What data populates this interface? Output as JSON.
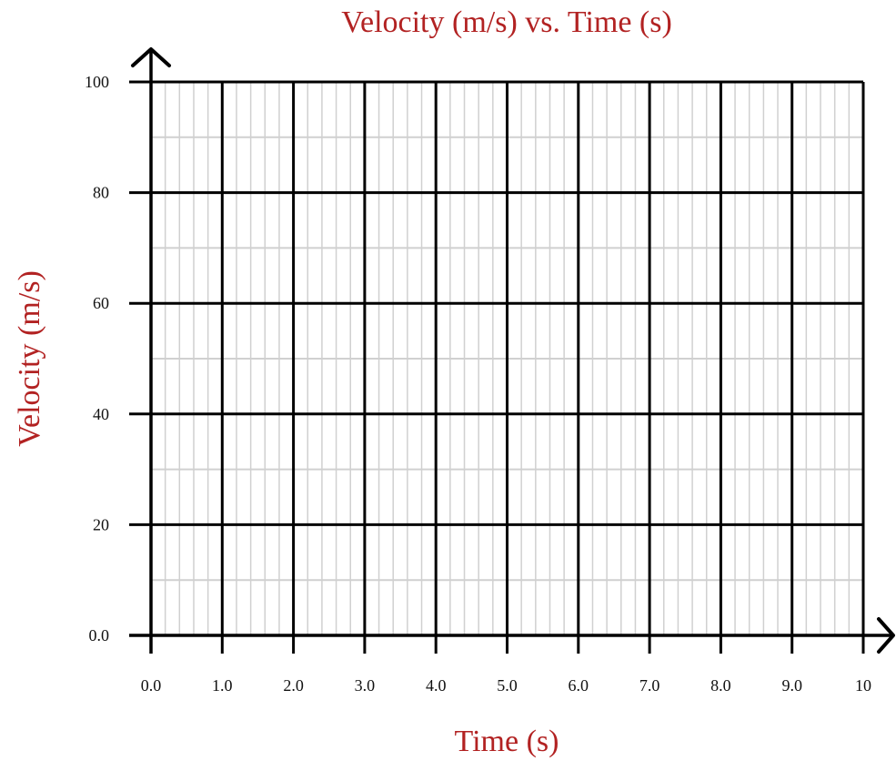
{
  "chart_data": {
    "type": "line",
    "title": "Velocity (m/s) vs. Time (s)",
    "xlabel": "Time (s)",
    "ylabel": "Velocity (m/s)",
    "xlim": [
      0,
      10
    ],
    "ylim": [
      0,
      100
    ],
    "x_tick_values": [
      0,
      1,
      2,
      3,
      4,
      5,
      6,
      7,
      8,
      9,
      10
    ],
    "x_tick_labels": [
      "0.0",
      "1.0",
      "2.0",
      "3.0",
      "4.0",
      "5.0",
      "6.0",
      "7.0",
      "8.0",
      "9.0",
      "10"
    ],
    "y_tick_values": [
      0,
      20,
      40,
      60,
      80,
      100
    ],
    "y_tick_labels": [
      "0.0",
      "20",
      "40",
      "60",
      "80",
      "100"
    ],
    "x_minor_step": 0.2,
    "y_minor_step": 10,
    "grid": true,
    "series": [],
    "colors": {
      "title": "#b22222",
      "axis_label": "#b22222",
      "major_grid": "#000000",
      "minor_grid": "#d0d0d0"
    }
  }
}
